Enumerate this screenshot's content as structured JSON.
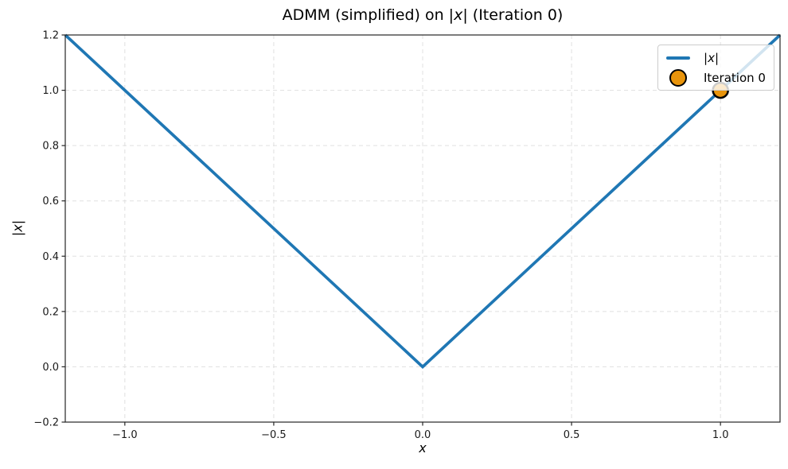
{
  "figure": {
    "title_pre": "ADMM (simplified) on |",
    "title_var": "x",
    "title_post": "| (Iteration 0)",
    "xlabel": "x",
    "ylabel_pre": "|",
    "ylabel_var": "x",
    "ylabel_post": "|"
  },
  "legend": {
    "position": "upper right",
    "items": [
      {
        "swatch": "line",
        "color": "#1f77b4",
        "label_pre": "|",
        "label_var": "x",
        "label_post": "|",
        "label": "|x|"
      },
      {
        "swatch": "circle",
        "color": "#e8940c",
        "edge_color": "#000000",
        "label": "Iteration 0"
      }
    ]
  },
  "chart_data": {
    "type": "line",
    "title": "ADMM (simplified) on |x| (Iteration 0)",
    "xlabel": "x",
    "ylabel": "|x|",
    "xlim": [
      -1.2,
      1.2
    ],
    "ylim": [
      -0.2,
      1.2
    ],
    "xticks": [
      -1.0,
      -0.5,
      0.0,
      0.5,
      1.0
    ],
    "yticks": [
      -0.2,
      0.0,
      0.2,
      0.4,
      0.6,
      0.8,
      1.0,
      1.2
    ],
    "grid": true,
    "grid_style": "dashed",
    "legend_position": "upper right",
    "series": [
      {
        "name": "|x|",
        "type": "line",
        "color": "#1f77b4",
        "line_width": 3.7,
        "x": [
          -1.2,
          0.0,
          1.2
        ],
        "y": [
          1.2,
          0.0,
          1.2
        ]
      },
      {
        "name": "Iteration 0",
        "type": "scatter",
        "color": "#e8940c",
        "edge_color": "#000000",
        "marker_radius": 11,
        "x": [
          1.0
        ],
        "y": [
          1.0
        ]
      }
    ],
    "colors": {
      "grid": "#e0e0e0",
      "spine": "#262626",
      "tick_label": "#1a1a1a",
      "title_text": "#000000"
    }
  }
}
